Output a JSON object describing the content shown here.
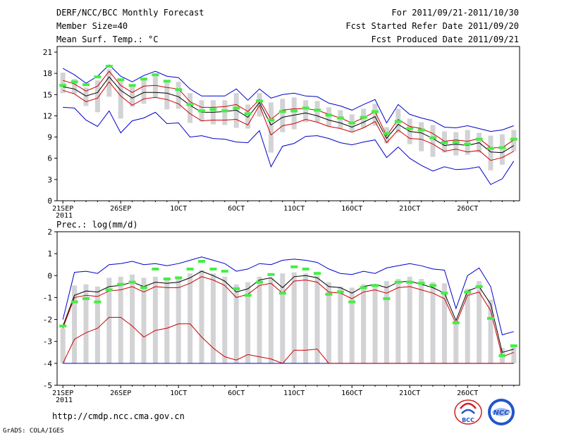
{
  "header": {
    "title": "DERF/NCC/BCC Monthly Forecast",
    "member_size": "Member Size=40",
    "variable": "Mean Surf. Temp.: °C",
    "period": "For 2011/09/21-2011/10/30",
    "started": "Fcst Started Refer Date 2011/09/20",
    "produced": "Fcst Produced Date 2011/09/21"
  },
  "footer": {
    "url": "http://cmdp.ncc.cma.gov.cn",
    "credit": "GrADS: COLA/IGES",
    "logo_bcc_text": "BCC",
    "logo_ncc_text": "NCC"
  },
  "colors": {
    "max_line": "#0000cc",
    "min_line": "#cc0000",
    "mean_line": "#000000",
    "bar": "#d3d3d6",
    "observed": "#44ee44",
    "grid": "#000000"
  },
  "chart_data": [
    {
      "type": "line",
      "title": "Mean Surf. Temp.: °C",
      "x_tick_labels": [
        "21SEP\n2011",
        "26SEP",
        "1OCT",
        "6OCT",
        "11OCT",
        "16OCT",
        "21OCT",
        "26OCT"
      ],
      "x_tick_days": [
        1,
        6,
        11,
        16,
        21,
        26,
        31,
        36
      ],
      "y_ticks": [
        0,
        3,
        6,
        9,
        12,
        15,
        18,
        21
      ],
      "ylim": [
        0,
        21.8
      ],
      "xlim": [
        0.5,
        40.5
      ],
      "days": [
        1,
        2,
        3,
        4,
        5,
        6,
        7,
        8,
        9,
        10,
        11,
        12,
        13,
        14,
        15,
        16,
        17,
        18,
        19,
        20,
        21,
        22,
        23,
        24,
        25,
        26,
        27,
        28,
        29,
        30,
        31,
        32,
        33,
        34,
        35,
        36,
        37,
        38,
        39,
        40
      ],
      "series": [
        {
          "name": "ensemble max",
          "values": [
            18.7,
            17.8,
            16.6,
            17.6,
            19.2,
            17.6,
            16.8,
            17.7,
            18.3,
            17.6,
            17.4,
            15.8,
            14.8,
            14.8,
            14.8,
            15.8,
            14.2,
            15.8,
            14.5,
            15.0,
            15.2,
            14.8,
            14.7,
            13.8,
            13.4,
            12.8,
            13.6,
            14.3,
            11.0,
            13.6,
            12.2,
            11.7,
            11.3,
            10.4,
            10.3,
            10.6,
            10.2,
            9.8,
            10.0,
            10.6
          ]
        },
        {
          "name": "upper red",
          "values": [
            17.0,
            16.5,
            15.5,
            16.2,
            18.3,
            16.3,
            15.3,
            16.2,
            16.3,
            16.0,
            15.8,
            14.0,
            13.2,
            13.2,
            13.3,
            13.6,
            12.6,
            14.3,
            11.5,
            12.8,
            13.0,
            13.0,
            12.8,
            12.2,
            11.7,
            11.0,
            11.7,
            12.6,
            9.2,
            11.5,
            10.5,
            10.2,
            9.5,
            8.4,
            8.6,
            8.4,
            8.8,
            7.5,
            7.5,
            8.6
          ]
        },
        {
          "name": "ensemble mean",
          "values": [
            16.1,
            15.8,
            14.8,
            15.3,
            17.5,
            15.6,
            14.5,
            15.3,
            15.3,
            15.2,
            14.7,
            13.5,
            12.5,
            12.5,
            12.6,
            12.8,
            11.8,
            13.9,
            10.7,
            11.8,
            12.1,
            12.4,
            12.0,
            11.4,
            11.0,
            10.4,
            11.1,
            11.9,
            8.8,
            10.8,
            9.8,
            9.6,
            8.8,
            7.8,
            8.0,
            7.8,
            8.2,
            6.9,
            6.8,
            7.8
          ]
        },
        {
          "name": "lower red",
          "values": [
            15.6,
            15.1,
            14.0,
            14.5,
            16.8,
            14.8,
            13.5,
            14.4,
            14.6,
            14.3,
            13.7,
            12.3,
            11.3,
            11.4,
            11.4,
            11.5,
            10.7,
            13.5,
            9.3,
            10.6,
            10.9,
            11.5,
            11.1,
            10.5,
            10.2,
            9.7,
            10.3,
            11.2,
            8.2,
            10.0,
            8.8,
            8.7,
            8.0,
            7.0,
            7.3,
            6.9,
            7.1,
            5.7,
            6.1,
            7.0
          ]
        },
        {
          "name": "ensemble min",
          "values": [
            13.2,
            13.1,
            11.4,
            10.5,
            12.7,
            9.6,
            11.3,
            11.7,
            12.5,
            10.9,
            11.0,
            9.0,
            9.2,
            8.8,
            8.7,
            8.3,
            8.2,
            9.9,
            4.8,
            7.7,
            8.1,
            9.1,
            9.2,
            8.8,
            8.2,
            7.9,
            8.3,
            8.6,
            6.1,
            7.6,
            6.0,
            5.0,
            4.2,
            4.8,
            4.4,
            4.5,
            4.8,
            2.3,
            3.1,
            5.6
          ]
        },
        {
          "name": "observed",
          "values": [
            16.3,
            16.8,
            16.4,
            17.5,
            19.0,
            17.1,
            16.3,
            17.2,
            17.8,
            16.9,
            15.7,
            13.6,
            12.7,
            12.9,
            12.7,
            13.1,
            12.3,
            14.1,
            11.4,
            12.6,
            12.7,
            13.1,
            12.8,
            12.1,
            11.7,
            11.0,
            11.8,
            12.6,
            9.5,
            11.2,
            10.2,
            10.0,
            8.9,
            8.2,
            8.3,
            8.0,
            8.7,
            7.4,
            7.5,
            8.7
          ]
        }
      ]
    },
    {
      "type": "line",
      "title": "Prec.: log(mm/d)",
      "x_tick_labels": [
        "21SEP\n2011",
        "26SEP",
        "1OCT",
        "6OCT",
        "11OCT",
        "16OCT",
        "21OCT",
        "26OCT"
      ],
      "x_tick_days": [
        1,
        6,
        11,
        16,
        21,
        26,
        31,
        36
      ],
      "y_ticks": [
        -5,
        -4,
        -3,
        -2,
        -1,
        0,
        1,
        2
      ],
      "ylim": [
        -5,
        2
      ],
      "xlim": [
        0.5,
        40.5
      ],
      "days": [
        1,
        2,
        3,
        4,
        5,
        6,
        7,
        8,
        9,
        10,
        11,
        12,
        13,
        14,
        15,
        16,
        17,
        18,
        19,
        20,
        21,
        22,
        23,
        24,
        25,
        26,
        27,
        28,
        29,
        30,
        31,
        32,
        33,
        34,
        35,
        36,
        37,
        38,
        39,
        40
      ],
      "series": [
        {
          "name": "ensemble max",
          "values": [
            -2.0,
            0.15,
            0.2,
            0.1,
            0.5,
            0.55,
            0.65,
            0.5,
            0.55,
            0.45,
            0.55,
            0.7,
            0.85,
            0.7,
            0.55,
            0.2,
            0.3,
            0.55,
            0.5,
            0.7,
            0.75,
            0.7,
            0.6,
            0.3,
            0.1,
            0.05,
            0.2,
            0.1,
            0.35,
            0.45,
            0.55,
            0.45,
            0.3,
            0.25,
            -1.5,
            0.0,
            0.35,
            -0.5,
            -2.7,
            -2.55
          ]
        },
        {
          "name": "ensemble mean",
          "values": [
            -2.3,
            -0.9,
            -0.7,
            -0.75,
            -0.5,
            -0.45,
            -0.3,
            -0.5,
            -0.3,
            -0.35,
            -0.3,
            -0.1,
            0.2,
            0.0,
            -0.25,
            -0.75,
            -0.6,
            -0.2,
            -0.1,
            -0.55,
            -0.05,
            0.0,
            -0.1,
            -0.5,
            -0.55,
            -0.8,
            -0.5,
            -0.4,
            -0.55,
            -0.3,
            -0.25,
            -0.4,
            -0.55,
            -0.8,
            -2.05,
            -0.7,
            -0.5,
            -1.3,
            -3.5,
            -3.35
          ]
        },
        {
          "name": "upper red",
          "values": [
            -2.4,
            -1.0,
            -0.9,
            -0.95,
            -0.7,
            -0.65,
            -0.5,
            -0.75,
            -0.5,
            -0.55,
            -0.55,
            -0.35,
            -0.05,
            -0.2,
            -0.45,
            -1.0,
            -0.85,
            -0.45,
            -0.35,
            -0.8,
            -0.25,
            -0.2,
            -0.3,
            -0.75,
            -0.8,
            -1.05,
            -0.75,
            -0.65,
            -0.8,
            -0.55,
            -0.5,
            -0.65,
            -0.8,
            -1.05,
            -2.2,
            -0.9,
            -0.75,
            -1.6,
            -3.7,
            -3.5
          ]
        },
        {
          "name": "lower red",
          "values": [
            -4.0,
            -2.9,
            -2.6,
            -2.4,
            -1.9,
            -1.9,
            -2.3,
            -2.8,
            -2.5,
            -2.4,
            -2.2,
            -2.2,
            -2.8,
            -3.3,
            -3.7,
            -3.85,
            -3.6,
            -3.7,
            -3.8,
            -4.0,
            -3.4,
            -3.4,
            -3.35,
            -4.0,
            -4.0,
            -4.0,
            -4.0,
            -4.0,
            -4.0,
            -4.0,
            -4.0,
            -4.0,
            -4.0,
            -4.0,
            -4.0,
            -4.0,
            -4.0,
            -4.0,
            -4.0,
            -4.0
          ]
        },
        {
          "name": "ensemble min",
          "values": [
            -4.0,
            -4.0,
            -4.0,
            -4.0,
            -4.0,
            -4.0,
            -4.0,
            -4.0,
            -4.0,
            -4.0,
            -4.0,
            -4.0,
            -4.0,
            -4.0,
            -4.0,
            -4.0,
            -4.0,
            -4.0,
            -4.0,
            -4.0,
            -4.0,
            -4.0,
            -4.0,
            -4.0,
            -4.0,
            -4.0,
            -4.0,
            -4.0,
            -4.0,
            -4.0,
            -4.0,
            -4.0,
            -4.0,
            -4.0,
            -4.0,
            -4.0,
            -4.0,
            -4.0,
            -4.0,
            -4.0
          ]
        },
        {
          "name": "observed",
          "values": [
            -2.3,
            -1.2,
            -1.05,
            -1.2,
            -0.65,
            -0.4,
            -0.3,
            -0.55,
            0.3,
            -0.15,
            -0.1,
            0.3,
            0.65,
            0.3,
            0.2,
            -0.6,
            -0.9,
            -0.3,
            0.05,
            -0.8,
            0.4,
            0.3,
            0.1,
            -0.85,
            -0.75,
            -1.2,
            -0.55,
            -0.45,
            -1.05,
            -0.3,
            -0.3,
            -0.35,
            -0.45,
            -0.8,
            -2.15,
            -0.75,
            -0.5,
            -1.95,
            -3.65,
            -3.2
          ]
        }
      ]
    }
  ]
}
